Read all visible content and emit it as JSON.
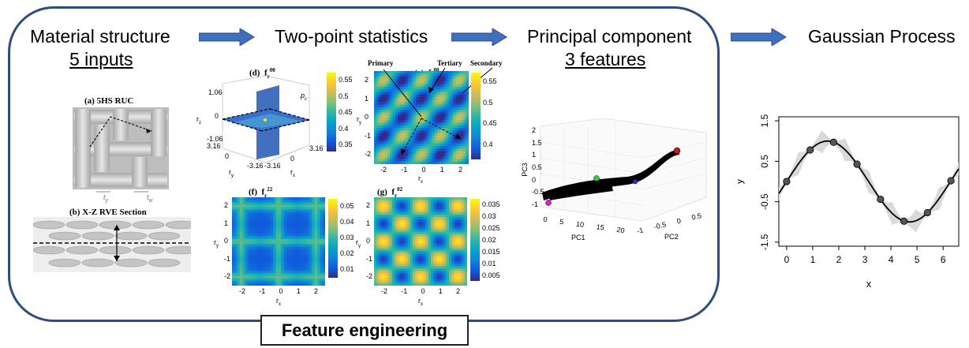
{
  "stages": {
    "material": {
      "title": "Material structure",
      "subtitle": "5 inputs"
    },
    "two_point": {
      "title": "Two-point statistics"
    },
    "pca": {
      "title": "Principal component",
      "subtitle": "3 features"
    },
    "gp": {
      "title": "Gaussian Process"
    }
  },
  "feature_box": {
    "label": "Feature engineering"
  },
  "material_panels": {
    "a_label": "(a)   5HS RUC",
    "b_label": "(b)   X-Z RVE Section",
    "ty": "t",
    "ty_sub": "y",
    "tw": "t",
    "tw_sub": "w"
  },
  "stat_panels": {
    "d": {
      "label": "(d)",
      "f": "f",
      "sup": "00",
      "sub": "r",
      "xlabel": "r",
      "xlabel_sub": "x",
      "ylabel": "r",
      "ylabel_sub": "y",
      "zlabel": "r",
      "zlabel_sub": "z",
      "ticks_z": [
        "1.06",
        "0",
        "-1.06"
      ],
      "ticks_misc": [
        "3.16",
        "0",
        "-3.16",
        "-3.16",
        "0",
        "3.16"
      ],
      "pc_label": "p",
      "pc_sub": "c",
      "colorbar": [
        "0.55",
        "0.5",
        "0.45",
        "0.4",
        "0.35"
      ]
    },
    "c": {
      "label": "(c)",
      "f": "f",
      "sup": "00",
      "sub": "r",
      "primary": "Primary",
      "tertiary": "Tertiary",
      "secondary": "Secondary",
      "ticks": [
        "-2",
        "-1",
        "0",
        "1",
        "2"
      ],
      "yticks": [
        "2",
        "1",
        "0",
        "-1",
        "-2"
      ],
      "xlabel": "r",
      "xlabel_sub": "x",
      "ylabel": "r",
      "ylabel_sub": "y",
      "colorbar": [
        "0.55",
        "0.5",
        "0.45",
        "0.4"
      ]
    },
    "f": {
      "label": "(f)",
      "f": "f",
      "sup": "22",
      "sub": "r",
      "ticks": [
        "-2",
        "-1",
        "0",
        "1",
        "2"
      ],
      "yticks": [
        "2",
        "1",
        "0",
        "-1",
        "-2"
      ],
      "xlabel": "r",
      "xlabel_sub": "x",
      "ylabel": "r",
      "ylabel_sub": "y",
      "colorbar": [
        "0.05",
        "0.04",
        "0.03",
        "0.02",
        "0.01"
      ]
    },
    "g": {
      "label": "(g)",
      "f": "f",
      "sup": "02",
      "sub": "r",
      "ticks": [
        "-2",
        "-1",
        "0",
        "1",
        "2"
      ],
      "yticks": [
        "2",
        "1",
        "0",
        "-1",
        "-2"
      ],
      "xlabel": "r",
      "xlabel_sub": "x",
      "ylabel": "r",
      "ylabel_sub": "y",
      "colorbar": [
        "0.035",
        "0.03",
        "0.025",
        "0.02",
        "0.015",
        "0.01",
        "0.005"
      ]
    }
  },
  "pca_plot": {
    "pc1_label": "PC1",
    "pc2_label": "PC2",
    "pc3_label": "PC3",
    "pc1_ticks": [
      "0",
      "5",
      "10",
      "15",
      "20"
    ],
    "pc2_ticks": [
      "-1",
      "-0.5",
      "0",
      "0.5"
    ],
    "pc3_ticks": [
      "2",
      "1.5",
      "1",
      "0.5",
      "0",
      "-0.5",
      "-1"
    ]
  },
  "chart_data": {
    "type": "line",
    "xlabel": "x",
    "ylabel": "y",
    "xlim": [
      -0.3,
      6.6
    ],
    "ylim": [
      -1.6,
      1.6
    ],
    "xticks": [
      0,
      1,
      2,
      3,
      4,
      5,
      6
    ],
    "yticks": [
      -1.5,
      -0.5,
      0.5,
      1.5
    ],
    "ytick_labels": [
      "-1.5",
      "-0.5",
      "0.5",
      "1.5"
    ],
    "points": {
      "x": [
        0,
        0.9,
        1.8,
        2.7,
        3.6,
        4.5,
        5.4,
        6.3
      ],
      "y": [
        0.0,
        0.78,
        0.97,
        0.43,
        -0.44,
        -0.98,
        -0.77,
        0.02
      ]
    },
    "mean_curve": "sin(x)",
    "band_color": "#d9d9d9",
    "line_color": "#000000",
    "point_color": "#555555"
  },
  "colors": {
    "box_border": "#2e4d7e",
    "arrow": "#3f6fbf"
  }
}
